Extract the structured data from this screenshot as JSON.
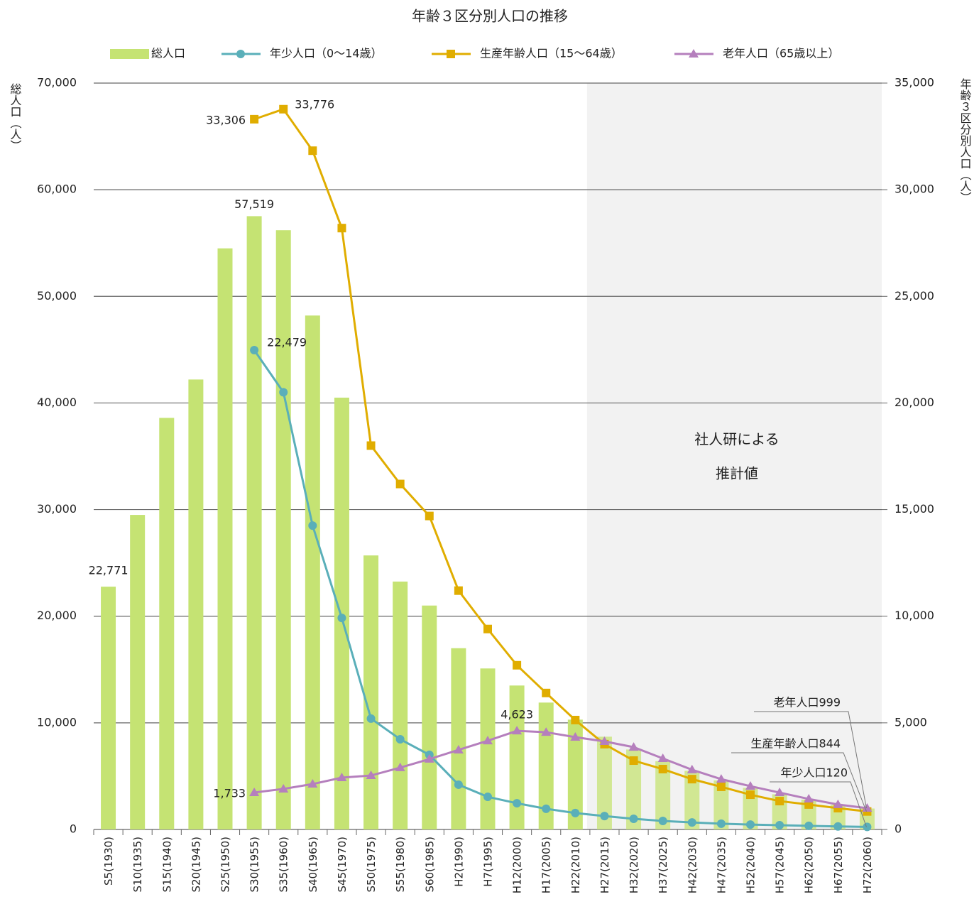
{
  "chart_data": {
    "type": "bar_line",
    "title": "年齢３区分別人口の推移",
    "y_label": "総人口（人）",
    "y2_label": "年齢３区分別人口（人）",
    "categories": [
      "S5(1930)",
      "S10(1935)",
      "S15(1940)",
      "S20(1945)",
      "S25(1950)",
      "S30(1955)",
      "S35(1960)",
      "S40(1965)",
      "S45(1970)",
      "S50(1975)",
      "S55(1980)",
      "S60(1985)",
      "H2(1990)",
      "H7(1995)",
      "H12(2000)",
      "H17(2005)",
      "H22(2010)",
      "H27(2015)",
      "H32(2020)",
      "H37(2025)",
      "H42(2030)",
      "H47(2035)",
      "H52(2040)",
      "H57(2045)",
      "H62(2050)",
      "H67(2055)",
      "H72(2060)"
    ],
    "series": [
      {
        "name": "総人口",
        "type": "bar",
        "axis": "y",
        "color": "#c5e373",
        "values": [
          22771,
          29500,
          38600,
          42200,
          54500,
          57519,
          56200,
          48200,
          40500,
          25700,
          23250,
          21000,
          17000,
          15100,
          13500,
          11900,
          10300,
          8700,
          7500,
          6400,
          5500,
          4600,
          3900,
          3300,
          2800,
          2300,
          1963
        ],
        "value_labels": [
          "22,771",
          null,
          null,
          null,
          null,
          "57,519",
          null,
          null,
          null,
          null,
          null,
          null,
          null,
          null,
          null,
          null,
          null,
          null,
          null,
          null,
          null,
          null,
          null,
          null,
          null,
          null,
          null
        ]
      },
      {
        "name": "年少人口（0～14歳）",
        "type": "line",
        "marker": "circle",
        "axis": "y2",
        "color": "#5aafb9",
        "values": [
          null,
          null,
          null,
          null,
          null,
          22479,
          20500,
          14250,
          9920,
          5200,
          4230,
          3500,
          2100,
          1530,
          1230,
          970,
          770,
          630,
          500,
          400,
          330,
          270,
          230,
          200,
          170,
          140,
          120
        ],
        "value_labels": [
          null,
          null,
          null,
          null,
          null,
          "22,479",
          null,
          null,
          null,
          null,
          null,
          null,
          null,
          null,
          null,
          null,
          null,
          null,
          null,
          null,
          null,
          null,
          null,
          null,
          null,
          null,
          null
        ]
      },
      {
        "name": "生産年齢人口（15～64歳）",
        "type": "line",
        "marker": "square",
        "axis": "y2",
        "color": "#e0ad00",
        "values": [
          null,
          null,
          null,
          null,
          null,
          33306,
          33776,
          31830,
          28200,
          18000,
          16200,
          14700,
          11200,
          9400,
          7700,
          6400,
          5130,
          4000,
          3230,
          2830,
          2360,
          2000,
          1630,
          1330,
          1170,
          1000,
          844
        ],
        "value_labels": [
          null,
          null,
          null,
          null,
          null,
          "33,306",
          "33,776",
          null,
          null,
          null,
          null,
          null,
          null,
          null,
          null,
          null,
          null,
          null,
          null,
          null,
          null,
          null,
          null,
          null,
          null,
          null,
          null
        ]
      },
      {
        "name": "老年人口（65歳以上）",
        "type": "line",
        "marker": "triangle",
        "axis": "y2",
        "color": "#b57fbd",
        "values": [
          null,
          null,
          null,
          null,
          null,
          1733,
          1900,
          2130,
          2430,
          2530,
          2900,
          3300,
          3730,
          4160,
          4623,
          4560,
          4330,
          4130,
          3860,
          3330,
          2800,
          2360,
          2030,
          1730,
          1430,
          1170,
          999
        ],
        "value_labels": [
          null,
          null,
          null,
          null,
          null,
          "1,733",
          null,
          null,
          null,
          null,
          null,
          null,
          null,
          null,
          "4,623",
          null,
          null,
          null,
          null,
          null,
          null,
          null,
          null,
          null,
          null,
          null,
          null
        ]
      }
    ],
    "ylim": [
      0,
      70000
    ],
    "yticks": [
      0,
      {
        "value": 10000,
        "label": "10,000"
      },
      {
        "value": 20000,
        "label": "20,000"
      },
      {
        "value": 30000,
        "label": "30,000"
      },
      {
        "value": 40000,
        "label": "40,000"
      },
      {
        "value": 50000,
        "label": "50,000"
      },
      {
        "value": 60000,
        "label": "60,000"
      },
      {
        "value": 70000,
        "label": "70,000"
      }
    ],
    "y2lim": [
      0,
      35000
    ],
    "y2ticks": [
      0,
      {
        "value": 5000,
        "label": "5,000"
      },
      {
        "value": 10000,
        "label": "10,000"
      },
      {
        "value": 15000,
        "label": "15,000"
      },
      {
        "value": 20000,
        "label": "20,000"
      },
      {
        "value": 25000,
        "label": "25,000"
      },
      {
        "value": 30000,
        "label": "30,000"
      },
      {
        "value": 35000,
        "label": "35,000"
      }
    ],
    "grid": true,
    "legend": "top",
    "annotations": [
      {
        "text": "社人研による"
      },
      {
        "text": "推計値"
      },
      {
        "text": "老年人口999"
      },
      {
        "text": "生産年齢人口844"
      },
      {
        "text": "年少人口120"
      }
    ]
  }
}
